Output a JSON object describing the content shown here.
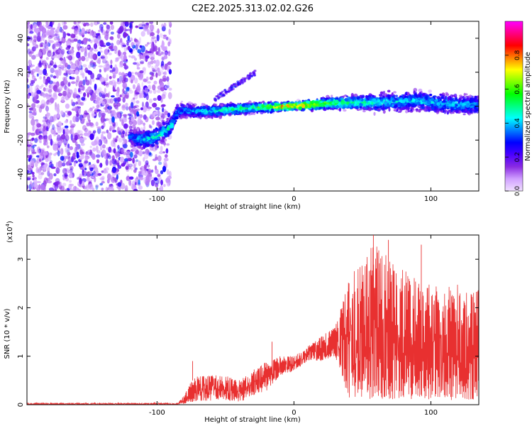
{
  "chart_data": [
    {
      "type": "heatmap",
      "title": "C2E2.2025.313.02.02.G26",
      "xlabel": "Height of straight line (km)",
      "ylabel": "Frequency (Hz)",
      "xlim": [
        -195,
        135
      ],
      "ylim": [
        -50,
        50
      ],
      "xticks": [
        -100,
        0,
        100
      ],
      "yticks": [
        -40,
        -20,
        0,
        20,
        40
      ],
      "colorbar": {
        "label": "Normalized spectral amplitude",
        "range": [
          0,
          1
        ],
        "ticks": [
          0.0,
          0.2,
          0.4,
          0.6,
          0.8
        ],
        "colors": [
          "#f0e0ff",
          "#d0a0ff",
          "#8a2be2",
          "#4b00ff",
          "#0000ff",
          "#0080ff",
          "#00ffff",
          "#00ff80",
          "#00ff00",
          "#80ff00",
          "#ffff00",
          "#ff8000",
          "#ff0000",
          "#ff0080",
          "#ff00ff"
        ]
      },
      "ridge": {
        "x": [
          -195,
          -120,
          -110,
          -100,
          -90,
          -85,
          -60,
          -30,
          0,
          30,
          60,
          90,
          120,
          135
        ],
        "y": [
          0,
          -18,
          -20,
          -18,
          -12,
          -3,
          -3,
          -1,
          0,
          2,
          2,
          3,
          1,
          1
        ],
        "amp": [
          0.15,
          0.3,
          0.4,
          0.45,
          0.45,
          0.35,
          0.45,
          0.55,
          0.85,
          0.55,
          0.45,
          0.4,
          0.4,
          0.4
        ],
        "width": [
          0,
          8,
          8,
          8,
          7,
          6,
          5,
          4,
          3,
          5,
          7,
          8,
          8,
          7
        ]
      },
      "noise_region": [
        -195,
        -90
      ],
      "side_branch": {
        "x": [
          -58,
          -28
        ],
        "y": [
          4,
          20
        ],
        "amp": 0.25
      }
    },
    {
      "type": "line",
      "xlabel": "Height of straight line (km)",
      "ylabel": "SNR (10 * v/v)",
      "y_multiplier": "(x10",
      "y_exponent": "4",
      "y_exponent_close": ")",
      "xlim": [
        -195,
        135
      ],
      "ylim": [
        0,
        3.5
      ],
      "xticks": [
        -100,
        0,
        100
      ],
      "yticks": [
        0,
        1,
        2,
        3
      ],
      "color": "#e83030",
      "envelope": {
        "x": [
          -195,
          -85,
          -80,
          -75,
          -70,
          -60,
          -50,
          -40,
          -30,
          -20,
          -10,
          0,
          10,
          20,
          30,
          40,
          50,
          60,
          70,
          80,
          90,
          100,
          110,
          120,
          130,
          135
        ],
        "low": [
          0,
          0,
          0.02,
          0.05,
          0.05,
          0.1,
          0.1,
          0.05,
          0.2,
          0.3,
          0.6,
          0.7,
          0.9,
          0.9,
          1.0,
          0.15,
          0.1,
          0.1,
          0.1,
          0.1,
          0.1,
          0.1,
          0.1,
          0.1,
          0.1,
          0.1
        ],
        "high": [
          0.03,
          0.03,
          0.2,
          0.5,
          0.6,
          0.6,
          0.6,
          0.5,
          0.7,
          0.9,
          1.0,
          1.0,
          1.2,
          1.4,
          1.6,
          2.6,
          3.0,
          3.4,
          3.0,
          2.8,
          2.6,
          2.5,
          2.4,
          2.5,
          2.3,
          2.4
        ]
      },
      "peaks": [
        {
          "x": -74,
          "y": 0.9
        },
        {
          "x": -16,
          "y": 1.3
        },
        {
          "x": 58,
          "y": 3.5
        },
        {
          "x": 69,
          "y": 3.4
        },
        {
          "x": 93,
          "y": 3.3
        }
      ]
    }
  ]
}
